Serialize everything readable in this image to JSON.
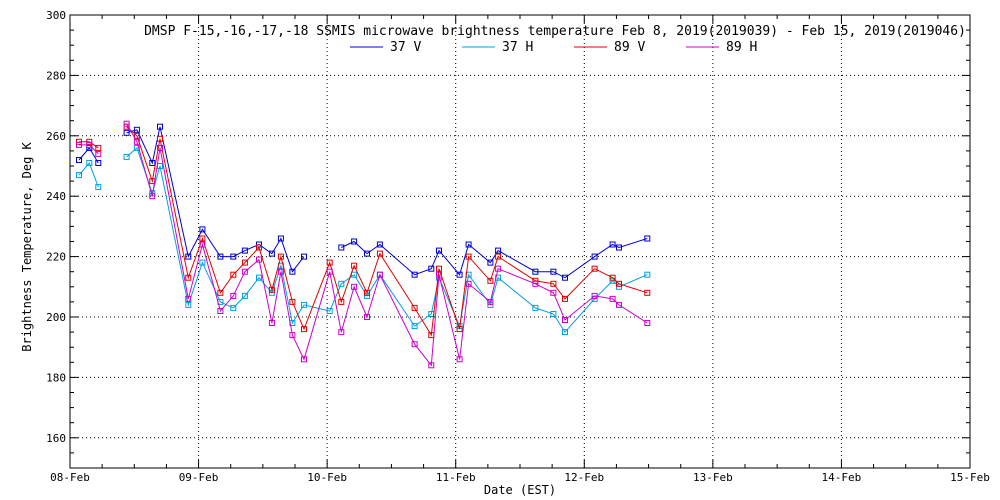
{
  "chart_data": {
    "type": "line",
    "title": "DMSP F-15,-16,-17,-18 SSMIS microwave brightness temperature Feb  8, 2019(2019039) - Feb 15, 2019(2019046)",
    "xlabel": "Date (EST)",
    "ylabel": "Brightness Temperature, Deg K",
    "xlim": [
      0,
      7
    ],
    "ylim": [
      150,
      300
    ],
    "x_tick_values": [
      0,
      1,
      2,
      3,
      4,
      5,
      6,
      7
    ],
    "x_tick_labels": [
      "08-Feb",
      "09-Feb",
      "10-Feb",
      "11-Feb",
      "12-Feb",
      "13-Feb",
      "14-Feb",
      "15-Feb"
    ],
    "y_ticks": [
      160,
      180,
      200,
      220,
      240,
      260,
      280,
      300
    ],
    "grid": true,
    "legend_position": "top-center",
    "x": [
      0.07,
      0.15,
      0.22,
      0.28,
      0.44,
      0.52,
      0.64,
      0.7,
      0.92,
      1.03,
      1.17,
      1.27,
      1.36,
      1.47,
      1.57,
      1.64,
      1.73,
      1.82,
      2.02,
      2.11,
      2.21,
      2.31,
      2.41,
      2.68,
      2.81,
      2.87,
      3.03,
      3.1,
      3.27,
      3.33,
      3.62,
      3.76,
      3.85,
      4.08,
      4.22,
      4.27,
      4.49,
      4.59,
      4.71,
      4.8
    ],
    "series": [
      {
        "name": "37 V",
        "color": "#0000cc",
        "values": [
          252,
          256,
          251,
          null,
          261,
          262,
          251,
          263,
          220,
          229,
          220,
          220,
          222,
          224,
          221,
          226,
          215,
          220,
          null,
          223,
          225,
          221,
          224,
          214,
          216,
          222,
          214,
          224,
          218,
          222,
          215,
          215,
          213,
          220,
          224,
          223,
          226,
          null,
          null,
          null
        ]
      },
      {
        "name": "37 H",
        "color": "#00a0e0",
        "values": [
          247,
          251,
          243,
          null,
          253,
          256,
          241,
          250,
          204,
          218,
          205,
          203,
          207,
          213,
          208,
          217,
          198,
          204,
          202,
          211,
          214,
          207,
          214,
          197,
          201,
          213,
          197,
          214,
          204,
          213,
          203,
          201,
          195,
          206,
          212,
          210,
          214,
          null,
          null,
          null
        ]
      },
      {
        "name": "89 V",
        "color": "#e00000",
        "values": [
          258,
          258,
          256,
          null,
          263,
          260,
          245,
          259,
          213,
          226,
          208,
          214,
          218,
          223,
          209,
          220,
          205,
          196,
          218,
          205,
          217,
          208,
          221,
          203,
          194,
          216,
          196,
          220,
          212,
          220,
          212,
          211,
          206,
          216,
          213,
          211,
          208,
          null,
          null,
          null
        ]
      },
      {
        "name": "89 H",
        "color": "#cc00cc",
        "values": [
          257,
          257,
          254,
          null,
          264,
          258,
          240,
          256,
          206,
          224,
          202,
          207,
          215,
          219,
          198,
          215,
          194,
          186,
          215,
          195,
          210,
          200,
          214,
          191,
          184,
          214,
          186,
          211,
          205,
          216,
          211,
          208,
          199,
          207,
          206,
          204,
          198,
          null,
          null,
          null
        ]
      }
    ]
  }
}
